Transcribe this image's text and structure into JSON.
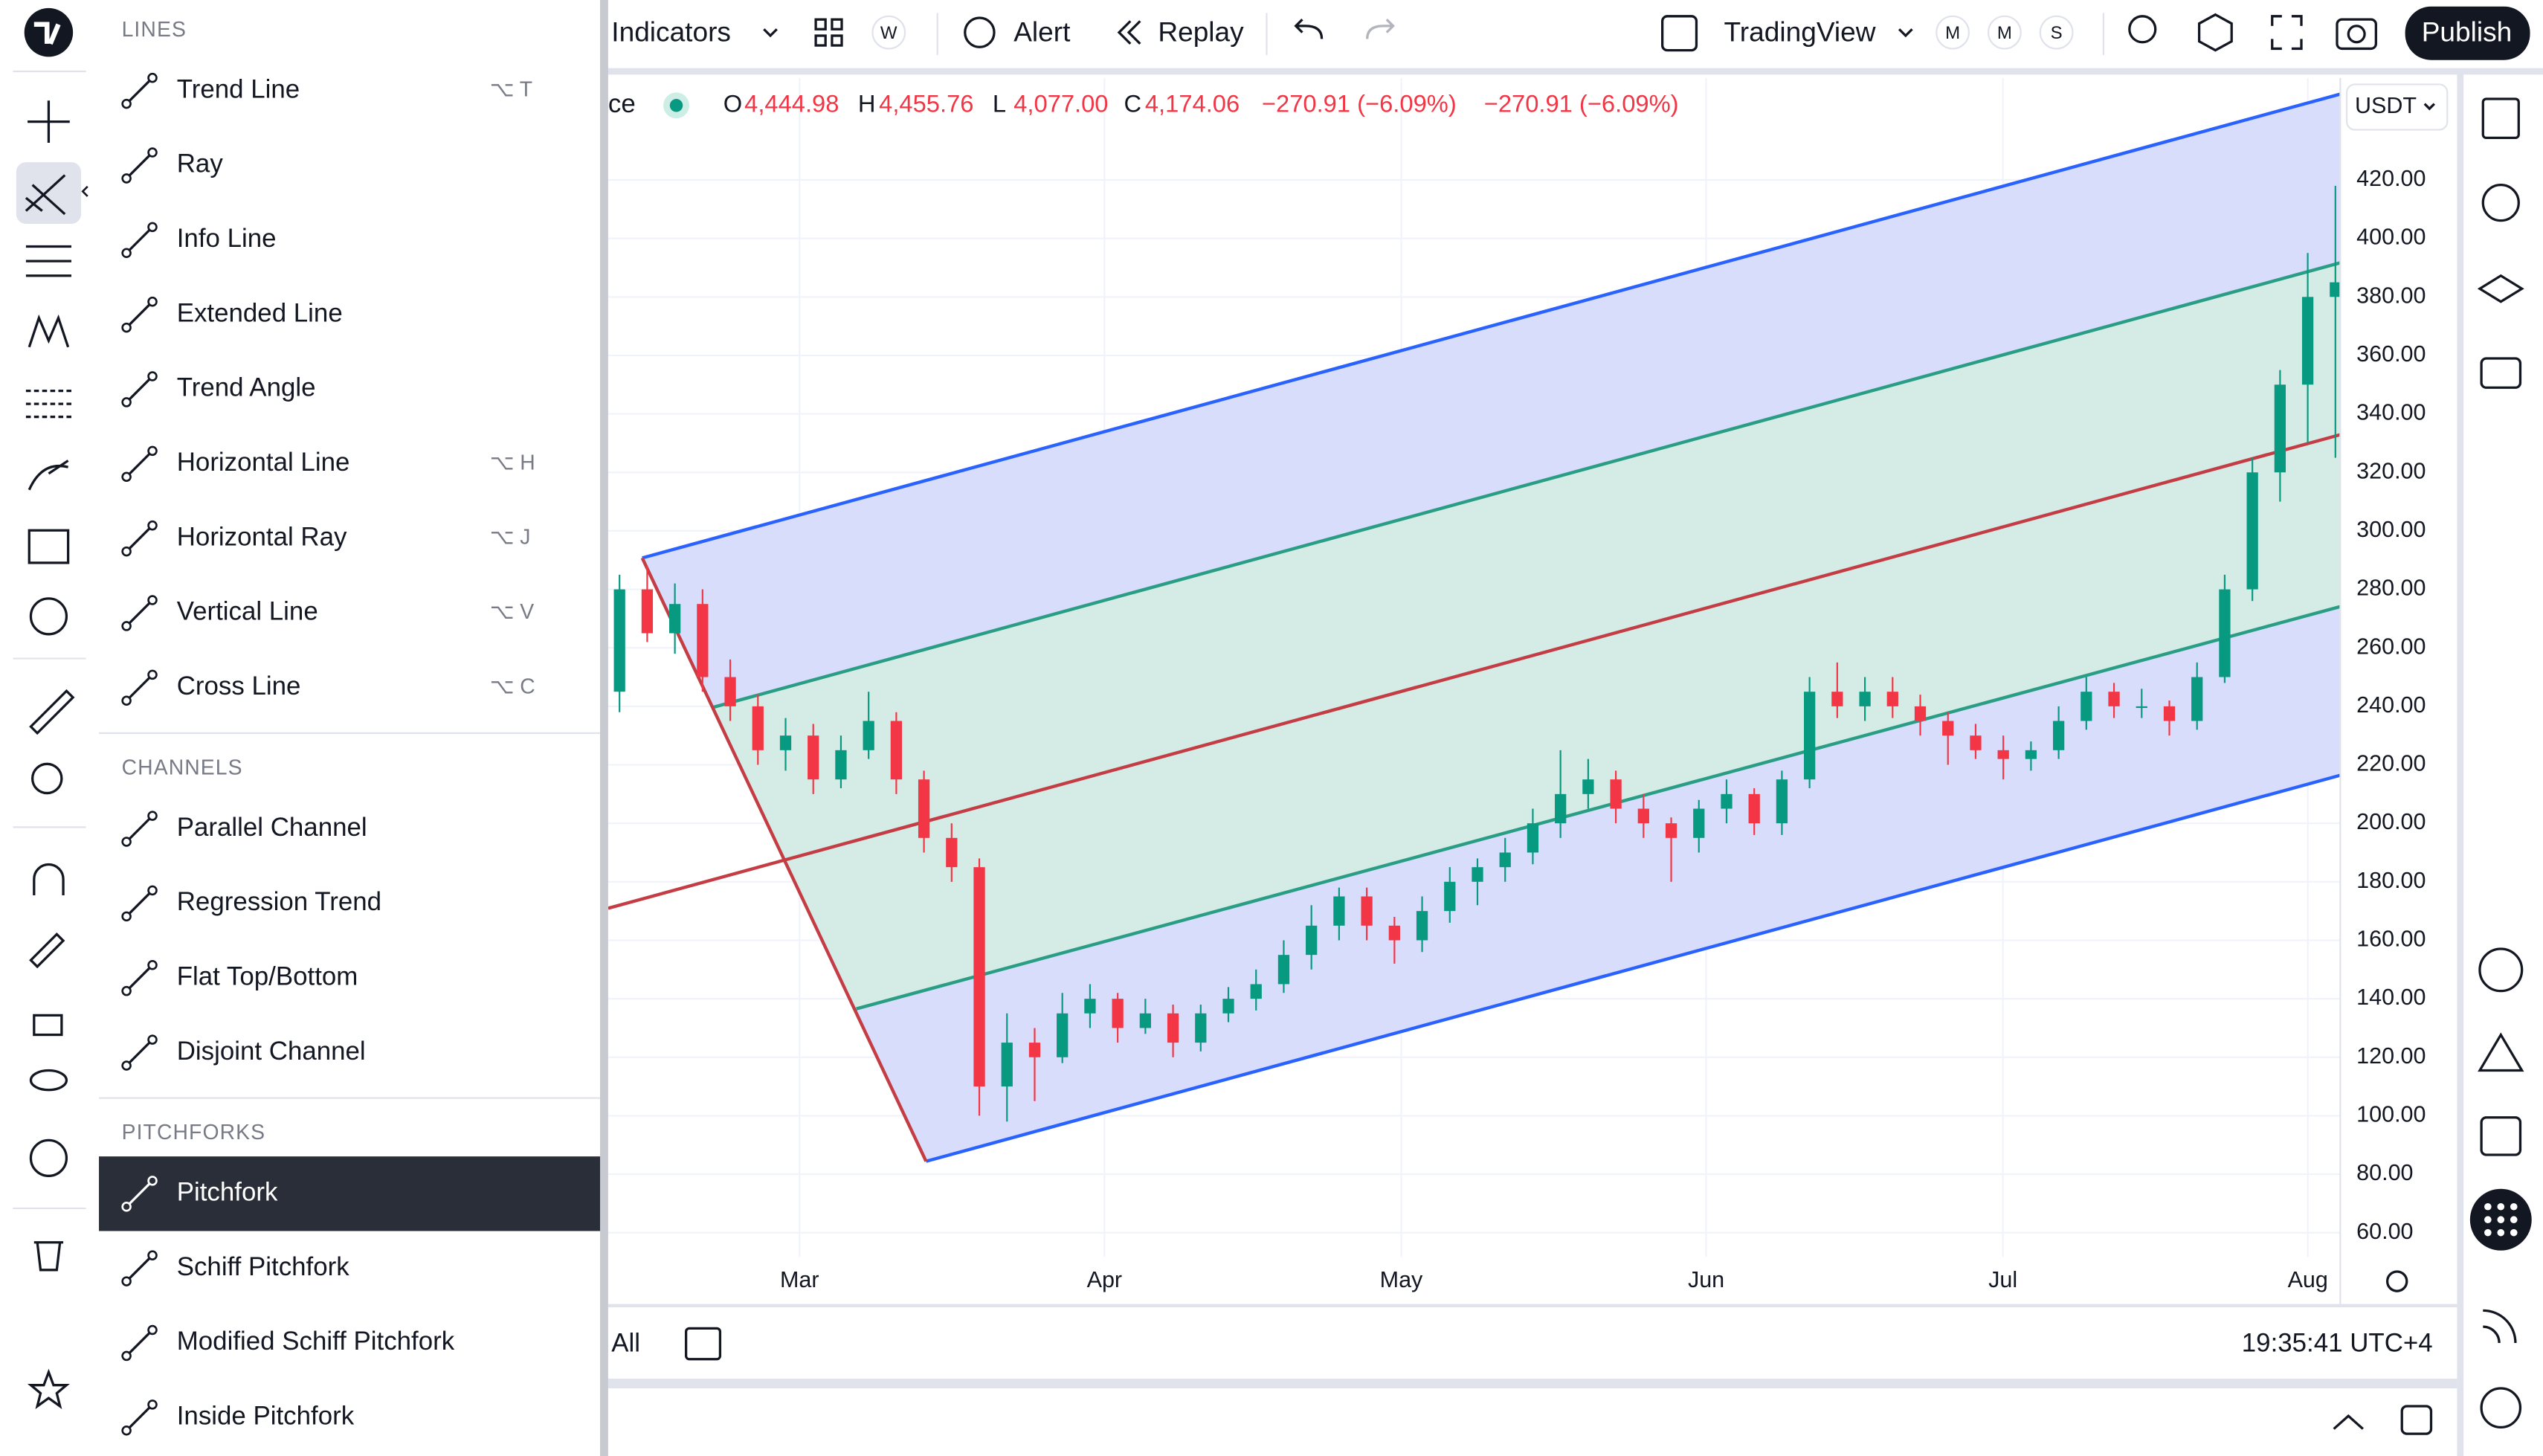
{
  "top_bar": {
    "indicators": "Indicators",
    "interval_badge": "W",
    "alert": "Alert",
    "replay": "Replay",
    "layout": "TradingView",
    "badge_1": "M",
    "badge_2": "M",
    "badge_3": "S",
    "publish": "Publish"
  },
  "menu": {
    "sections": [
      {
        "title": "LINES",
        "items": [
          {
            "label": "Trend Line",
            "shortcut": "⌥ T"
          },
          {
            "label": "Ray"
          },
          {
            "label": "Info Line"
          },
          {
            "label": "Extended Line"
          },
          {
            "label": "Trend Angle"
          },
          {
            "label": "Horizontal Line",
            "shortcut": "⌥ H"
          },
          {
            "label": "Horizontal Ray",
            "shortcut": "⌥ J"
          },
          {
            "label": "Vertical Line",
            "shortcut": "⌥ V"
          },
          {
            "label": "Cross Line",
            "shortcut": "⌥ C"
          }
        ]
      },
      {
        "title": "CHANNELS",
        "items": [
          {
            "label": "Parallel Channel"
          },
          {
            "label": "Regression Trend"
          },
          {
            "label": "Flat Top/Bottom"
          },
          {
            "label": "Disjoint Channel"
          }
        ]
      },
      {
        "title": "PITCHFORKS",
        "items": [
          {
            "label": "Pitchfork",
            "active": true
          },
          {
            "label": "Schiff Pitchfork"
          },
          {
            "label": "Modified Schiff Pitchfork"
          },
          {
            "label": "Inside Pitchfork"
          }
        ]
      }
    ]
  },
  "legend": {
    "symbol_fragment": "ce",
    "open_label": "O",
    "open": "4,444.98",
    "high_label": "H",
    "high": "4,455.76",
    "low_label": "L",
    "low": "4,077.00",
    "close_label": "C",
    "close": "4,174.06",
    "change": "−270.91 (−6.09%)",
    "change_2": "−270.91 (−6.09%)"
  },
  "chart": {
    "currency": "USDT",
    "ylim": [
      51.7,
      453.8
    ],
    "yticks": [
      {
        "value": 420,
        "label": "420.00"
      },
      {
        "value": 400,
        "label": "400.00"
      },
      {
        "value": 380,
        "label": "380.00"
      },
      {
        "value": 360,
        "label": "360.00"
      },
      {
        "value": 340,
        "label": "340.00"
      },
      {
        "value": 320,
        "label": "320.00"
      },
      {
        "value": 300,
        "label": "300.00"
      },
      {
        "value": 280,
        "label": "280.00"
      },
      {
        "value": 260,
        "label": "260.00"
      },
      {
        "value": 240,
        "label": "240.00"
      },
      {
        "value": 220,
        "label": "220.00"
      },
      {
        "value": 200,
        "label": "200.00"
      },
      {
        "value": 180,
        "label": "180.00"
      },
      {
        "value": 160,
        "label": "160.00"
      },
      {
        "value": 140,
        "label": "140.00"
      },
      {
        "value": 120,
        "label": "120.00"
      },
      {
        "value": 100,
        "label": "100.00"
      },
      {
        "value": 80,
        "label": "80.00"
      },
      {
        "value": 60,
        "label": "60.00"
      }
    ],
    "x_labels": [
      "Mar",
      "Apr",
      "May",
      "Jun",
      "Jul",
      "Aug"
    ],
    "up_color": "#089981",
    "down_color": "#f23645",
    "candles": [
      [
        245,
        285,
        238,
        280
      ],
      [
        280,
        288,
        262,
        265
      ],
      [
        265,
        282,
        258,
        275
      ],
      [
        275,
        280,
        245,
        250
      ],
      [
        250,
        256,
        235,
        240
      ],
      [
        240,
        244,
        220,
        225
      ],
      [
        225,
        236,
        218,
        230
      ],
      [
        230,
        234,
        210,
        215
      ],
      [
        215,
        230,
        212,
        225
      ],
      [
        225,
        245,
        222,
        235
      ],
      [
        235,
        238,
        210,
        215
      ],
      [
        215,
        218,
        190,
        195
      ],
      [
        195,
        200,
        180,
        185
      ],
      [
        185,
        188,
        100,
        110
      ],
      [
        110,
        135,
        98,
        125
      ],
      [
        125,
        130,
        105,
        120
      ],
      [
        120,
        142,
        118,
        135
      ],
      [
        135,
        145,
        130,
        140
      ],
      [
        140,
        142,
        125,
        130
      ],
      [
        130,
        140,
        128,
        135
      ],
      [
        135,
        138,
        120,
        125
      ],
      [
        125,
        138,
        122,
        135
      ],
      [
        135,
        144,
        132,
        140
      ],
      [
        140,
        150,
        136,
        145
      ],
      [
        145,
        160,
        142,
        155
      ],
      [
        155,
        172,
        150,
        165
      ],
      [
        165,
        178,
        160,
        175
      ],
      [
        175,
        178,
        160,
        165
      ],
      [
        165,
        168,
        152,
        160
      ],
      [
        160,
        175,
        156,
        170
      ],
      [
        170,
        185,
        166,
        180
      ],
      [
        180,
        188,
        172,
        185
      ],
      [
        185,
        195,
        180,
        190
      ],
      [
        190,
        205,
        186,
        200
      ],
      [
        200,
        225,
        195,
        210
      ],
      [
        210,
        222,
        205,
        215
      ],
      [
        215,
        218,
        200,
        205
      ],
      [
        205,
        210,
        195,
        200
      ],
      [
        200,
        202,
        180,
        195
      ],
      [
        195,
        208,
        190,
        205
      ],
      [
        205,
        215,
        200,
        210
      ],
      [
        210,
        212,
        196,
        200
      ],
      [
        200,
        218,
        196,
        215
      ],
      [
        215,
        250,
        212,
        245
      ],
      [
        245,
        255,
        236,
        240
      ],
      [
        240,
        250,
        235,
        245
      ],
      [
        245,
        250,
        236,
        240
      ],
      [
        240,
        244,
        230,
        235
      ],
      [
        235,
        238,
        220,
        230
      ],
      [
        230,
        234,
        222,
        225
      ],
      [
        225,
        230,
        215,
        222
      ],
      [
        222,
        228,
        218,
        225
      ],
      [
        225,
        240,
        222,
        235
      ],
      [
        235,
        250,
        232,
        245
      ],
      [
        245,
        248,
        236,
        240
      ],
      [
        240,
        246,
        236,
        240
      ],
      [
        240,
        242,
        230,
        235
      ],
      [
        235,
        255,
        232,
        250
      ],
      [
        250,
        285,
        248,
        280
      ],
      [
        280,
        325,
        276,
        320
      ],
      [
        320,
        355,
        310,
        350
      ],
      [
        350,
        395,
        330,
        380
      ],
      [
        380,
        418,
        325,
        385
      ]
    ]
  },
  "bottom_bar": {
    "range": "All",
    "time": "19:35:41 UTC+4"
  }
}
